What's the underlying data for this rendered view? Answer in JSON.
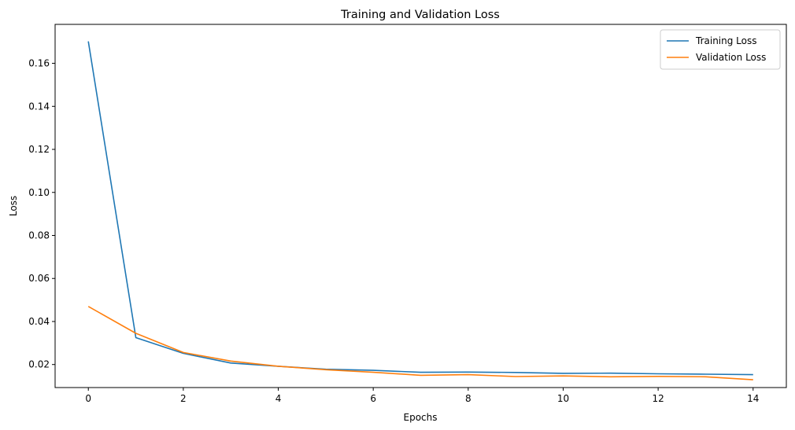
{
  "chart_data": {
    "type": "line",
    "title": "Training and Validation Loss",
    "xlabel": "Epochs",
    "ylabel": "Loss",
    "x": [
      0,
      1,
      2,
      3,
      4,
      5,
      6,
      7,
      8,
      9,
      10,
      11,
      12,
      13,
      14
    ],
    "xlim": [
      -0.7,
      14.7
    ],
    "ylim": [
      0.0093,
      0.1781
    ],
    "xticks": [
      0,
      2,
      4,
      6,
      8,
      10,
      12,
      14
    ],
    "xtick_labels": [
      "0",
      "2",
      "4",
      "6",
      "8",
      "10",
      "12",
      "14"
    ],
    "yticks": [
      0.02,
      0.04,
      0.06,
      0.08,
      0.1,
      0.12,
      0.14,
      0.16
    ],
    "ytick_labels": [
      "0.02",
      "0.04",
      "0.06",
      "0.08",
      "0.10",
      "0.12",
      "0.14",
      "0.16"
    ],
    "grid": false,
    "legend_position": "upper right",
    "series": [
      {
        "name": "Training Loss",
        "color": "#1f77b4",
        "values": [
          0.1702,
          0.0325,
          0.0252,
          0.0207,
          0.0192,
          0.0178,
          0.0173,
          0.0164,
          0.0165,
          0.0163,
          0.0159,
          0.016,
          0.0157,
          0.0155,
          0.0153
        ]
      },
      {
        "name": "Validation Loss",
        "color": "#ff7f0e",
        "values": [
          0.047,
          0.0345,
          0.0256,
          0.0216,
          0.0192,
          0.0176,
          0.0164,
          0.015,
          0.0153,
          0.0144,
          0.0147,
          0.0143,
          0.0145,
          0.0143,
          0.0129
        ]
      }
    ]
  }
}
